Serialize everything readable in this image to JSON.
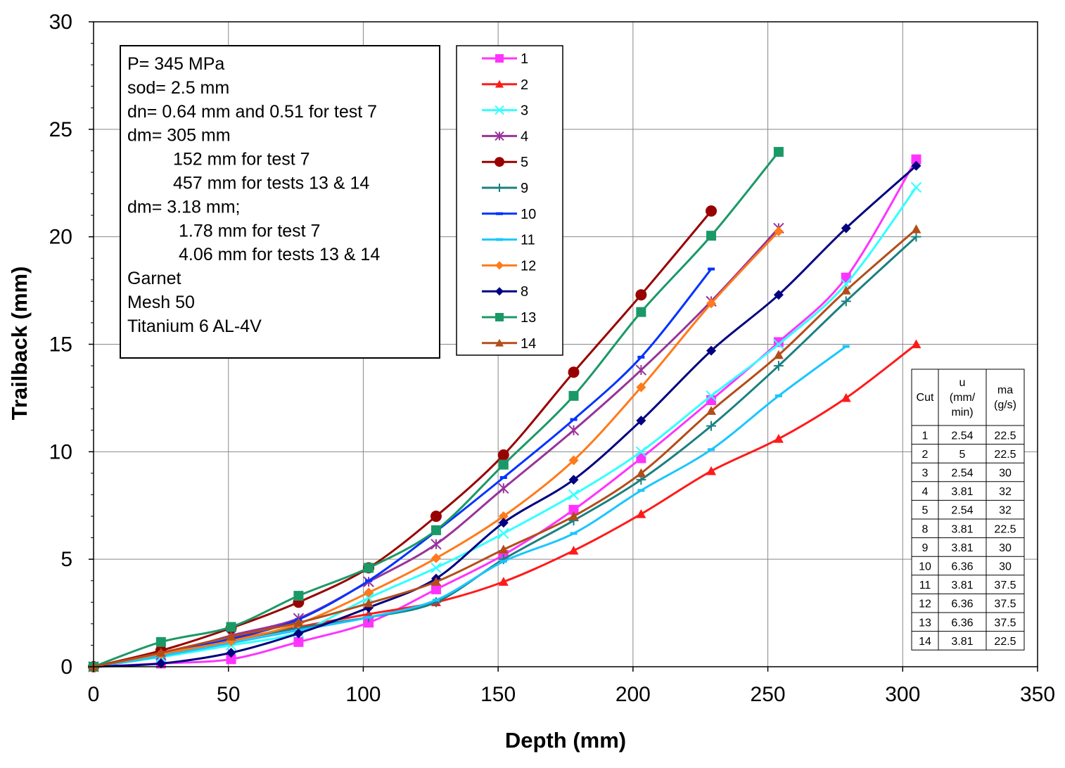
{
  "chart_data": {
    "type": "line",
    "xlabel": "Depth (mm)",
    "ylabel": "Trailback (mm)",
    "xlim": [
      0,
      350
    ],
    "ylim": [
      0,
      30
    ],
    "xticks": [
      0,
      50,
      100,
      150,
      200,
      250,
      300,
      350
    ],
    "yticks": [
      0,
      5,
      10,
      15,
      20,
      25,
      30
    ],
    "grid": true,
    "legend_position": "top-center",
    "series": [
      {
        "name": "1",
        "color": "#ff33ff",
        "marker": "square",
        "x": [
          0,
          25,
          51,
          76,
          102,
          127,
          152,
          178,
          203,
          229,
          254,
          279,
          305
        ],
        "y": [
          0,
          0.15,
          0.35,
          1.15,
          2.05,
          3.6,
          5.2,
          7.3,
          9.7,
          12.4,
          15.1,
          18.1,
          23.6
        ]
      },
      {
        "name": "2",
        "color": "#ff1a1a",
        "marker": "triangle",
        "x": [
          0,
          25,
          51,
          76,
          102,
          127,
          152,
          178,
          203,
          229,
          254,
          279,
          305
        ],
        "y": [
          0,
          0.6,
          1.25,
          1.85,
          2.45,
          3.0,
          3.95,
          5.4,
          7.1,
          9.1,
          10.6,
          12.5,
          15.0
        ]
      },
      {
        "name": "3",
        "color": "#33ffff",
        "marker": "x",
        "x": [
          0,
          25,
          51,
          76,
          102,
          127,
          152,
          178,
          203,
          229,
          254,
          279,
          305
        ],
        "y": [
          0,
          0.45,
          1.0,
          1.6,
          3.2,
          4.6,
          6.2,
          8.0,
          10.0,
          12.6,
          15.0,
          17.8,
          22.3
        ]
      },
      {
        "name": "4",
        "color": "#993399",
        "marker": "star",
        "x": [
          0,
          25,
          51,
          76,
          102,
          127,
          152,
          178,
          203,
          229,
          254
        ],
        "y": [
          0,
          0.55,
          1.45,
          2.25,
          3.95,
          5.7,
          8.3,
          11.0,
          13.8,
          17.0,
          20.4
        ]
      },
      {
        "name": "5",
        "color": "#990000",
        "marker": "circle",
        "x": [
          0,
          25,
          51,
          76,
          102,
          127,
          152,
          178,
          203,
          229
        ],
        "y": [
          0,
          0.75,
          1.8,
          3.0,
          4.6,
          7.0,
          9.85,
          13.7,
          17.3,
          21.2
        ]
      },
      {
        "name": "9",
        "color": "#1a8080",
        "marker": "plus",
        "x": [
          0,
          25,
          51,
          76,
          102,
          127,
          152,
          178,
          203,
          229,
          254,
          279,
          305
        ],
        "y": [
          0,
          0.5,
          1.2,
          1.8,
          2.3,
          3.0,
          5.0,
          6.8,
          8.7,
          11.2,
          14.0,
          17.0,
          20.0
        ]
      },
      {
        "name": "10",
        "color": "#0033ff",
        "marker": "dash",
        "x": [
          0,
          25,
          51,
          76,
          102,
          127,
          152,
          178,
          203,
          229
        ],
        "y": [
          0,
          0.6,
          1.3,
          2.2,
          4.0,
          6.3,
          8.8,
          11.5,
          14.4,
          18.5
        ]
      },
      {
        "name": "11",
        "color": "#1ac6ff",
        "marker": "dash",
        "x": [
          0,
          25,
          51,
          76,
          102,
          127,
          152,
          178,
          203,
          229,
          254,
          279
        ],
        "y": [
          0,
          0.5,
          1.1,
          1.7,
          2.3,
          3.1,
          4.9,
          6.2,
          8.2,
          10.1,
          12.6,
          14.9
        ]
      },
      {
        "name": "12",
        "color": "#ff7a1a",
        "marker": "diamond",
        "x": [
          0,
          25,
          51,
          76,
          102,
          127,
          152,
          178,
          203,
          229,
          254
        ],
        "y": [
          0,
          0.6,
          1.2,
          2.0,
          3.45,
          5.05,
          7.0,
          9.6,
          13.0,
          16.9,
          20.25
        ]
      },
      {
        "name": "8",
        "color": "#000080",
        "marker": "diamond",
        "x": [
          0,
          25,
          51,
          76,
          102,
          127,
          152,
          178,
          203,
          229,
          254,
          279,
          305
        ],
        "y": [
          0,
          0.15,
          0.65,
          1.55,
          2.75,
          4.1,
          6.7,
          8.7,
          11.45,
          14.7,
          17.3,
          20.4,
          23.3
        ]
      },
      {
        "name": "13",
        "color": "#1a9966",
        "marker": "square",
        "x": [
          0,
          25,
          51,
          76,
          102,
          127,
          152,
          178,
          203,
          229,
          254
        ],
        "y": [
          0,
          1.15,
          1.85,
          3.3,
          4.6,
          6.35,
          9.4,
          12.6,
          16.5,
          20.05,
          23.95
        ]
      },
      {
        "name": "14",
        "color": "#b34d1a",
        "marker": "triangle",
        "x": [
          0,
          25,
          51,
          76,
          102,
          127,
          152,
          178,
          203,
          229,
          254,
          279,
          305
        ],
        "y": [
          0,
          0.65,
          1.4,
          2.05,
          2.95,
          3.95,
          5.45,
          7.0,
          9.0,
          11.9,
          14.5,
          17.5,
          20.35
        ]
      }
    ],
    "annotation_lines": [
      "P= 345 MPa",
      "sod= 2.5 mm",
      "dn=  0.64 mm and 0.51 for test 7",
      "dm= 305 mm",
      "152 mm for test 7",
      "457 mm for tests 13 & 14",
      "dm= 3.18 mm;",
      "1.78 mm for test 7",
      "4.06 mm for tests 13 & 14",
      "Garnet",
      "Mesh 50",
      "Titanium 6 AL-4V"
    ],
    "cut_table": {
      "headers": [
        [
          "Cut"
        ],
        [
          "u",
          "(mm/",
          "min)"
        ],
        [
          "ma",
          "(g/s)"
        ]
      ],
      "rows": [
        [
          "1",
          "2.54",
          "22.5"
        ],
        [
          "2",
          "5",
          "22.5"
        ],
        [
          "3",
          "2.54",
          "30"
        ],
        [
          "4",
          "3.81",
          "32"
        ],
        [
          "5",
          "2.54",
          "32"
        ],
        [
          "8",
          "3.81",
          "22.5"
        ],
        [
          "9",
          "3.81",
          "30"
        ],
        [
          "10",
          "6.36",
          "30"
        ],
        [
          "11",
          "3.81",
          "37.5"
        ],
        [
          "12",
          "6.36",
          "37.5"
        ],
        [
          "13",
          "6.36",
          "37.5"
        ],
        [
          "14",
          "3.81",
          "22.5"
        ]
      ]
    }
  }
}
